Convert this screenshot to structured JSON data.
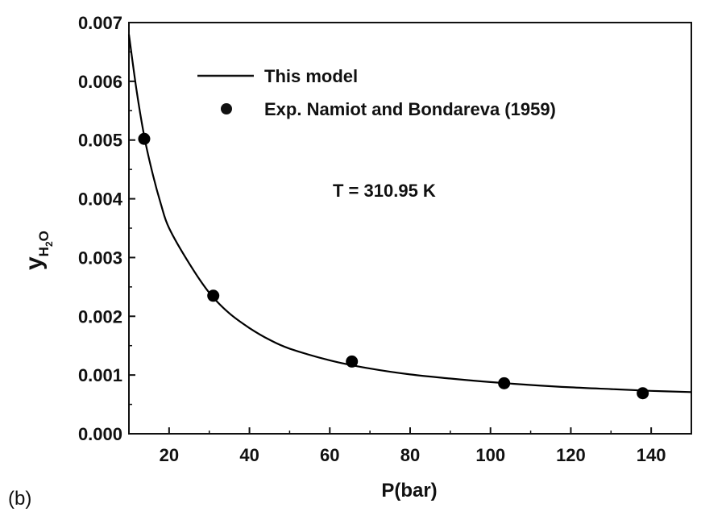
{
  "chart_data": {
    "type": "line",
    "xlabel": "P(bar)",
    "ylabel": {
      "main": "y",
      "sub1": "H",
      "sub2": "2",
      "sub3": "O"
    },
    "xlim": [
      10,
      150
    ],
    "ylim": [
      0,
      0.007
    ],
    "xticks": [
      20,
      40,
      60,
      80,
      100,
      120,
      140
    ],
    "xtick_labels": [
      "20",
      "40",
      "60",
      "80",
      "100",
      "120",
      "140"
    ],
    "yticks": [
      0,
      0.001,
      0.002,
      0.003,
      0.004,
      0.005,
      0.006,
      0.007
    ],
    "ytick_labels": [
      "0.000",
      "0.001",
      "0.002",
      "0.003",
      "0.004",
      "0.005",
      "0.006",
      "0.007"
    ],
    "grid": false,
    "legend_position": "top",
    "annotation": "T = 310.95 K",
    "panel_label": "(b)",
    "series": [
      {
        "name": "This model",
        "kind": "line",
        "color": "#000000",
        "x": [
          10,
          12,
          14,
          16,
          18,
          20,
          25,
          30,
          35,
          40,
          45,
          50,
          60,
          70,
          80,
          90,
          100,
          110,
          120,
          130,
          140,
          150
        ],
        "y": [
          0.0068,
          0.0058,
          0.005,
          0.0044,
          0.0039,
          0.0035,
          0.0029,
          0.0024,
          0.00205,
          0.0018,
          0.0016,
          0.00145,
          0.00125,
          0.00111,
          0.00101,
          0.00094,
          0.00088,
          0.00083,
          0.00079,
          0.00076,
          0.00073,
          0.00071
        ]
      },
      {
        "name": "Exp. Namiot and Bondareva (1959)",
        "kind": "scatter",
        "color": "#000000",
        "x": [
          13.8,
          31.0,
          65.5,
          103.4,
          137.9
        ],
        "y": [
          0.00502,
          0.00235,
          0.00123,
          0.00086,
          0.00069
        ]
      }
    ]
  }
}
